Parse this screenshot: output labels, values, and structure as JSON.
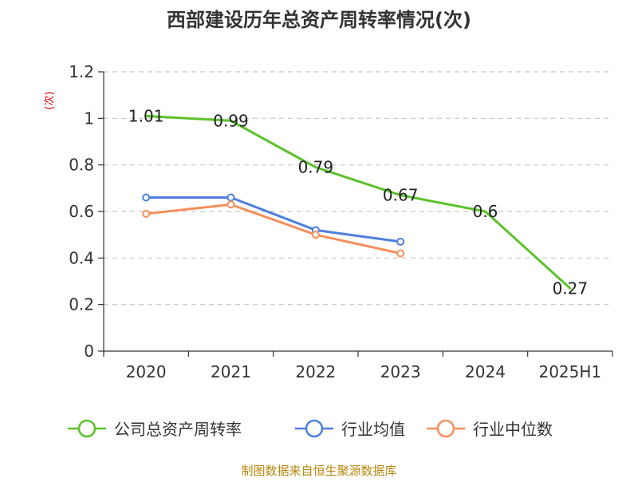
{
  "chart_data": {
    "type": "line",
    "title": "西部建设历年总资产周转率情况(次)",
    "ylabel": "(次)",
    "categories": [
      "2020",
      "2021",
      "2022",
      "2023",
      "2024",
      "2025H1"
    ],
    "ylim": [
      0,
      1.2
    ],
    "yticks": [
      "0",
      "0.2",
      "0.4",
      "0.6",
      "0.8",
      "1",
      "1.2"
    ],
    "grid": true,
    "legend_position": "bottom",
    "series": [
      {
        "name": "公司总资产周转率",
        "color": "#5cc22c",
        "values": [
          1.01,
          0.99,
          0.79,
          0.67,
          0.6,
          0.27
        ],
        "labels": [
          "1.01",
          "0.99",
          "0.79",
          "0.67",
          "0.6",
          "0.27"
        ],
        "show_markers": false,
        "show_labels": true
      },
      {
        "name": "行业均值",
        "color": "#4f7fdd",
        "values": [
          0.66,
          0.66,
          0.52,
          0.47,
          null,
          null
        ],
        "show_markers": true,
        "show_labels": false
      },
      {
        "name": "行业中位数",
        "color": "#f58f5c",
        "values": [
          0.59,
          0.63,
          0.5,
          0.42,
          null,
          null
        ],
        "show_markers": true,
        "show_labels": false
      }
    ],
    "source": "制图数据来自恒生聚源数据库"
  }
}
